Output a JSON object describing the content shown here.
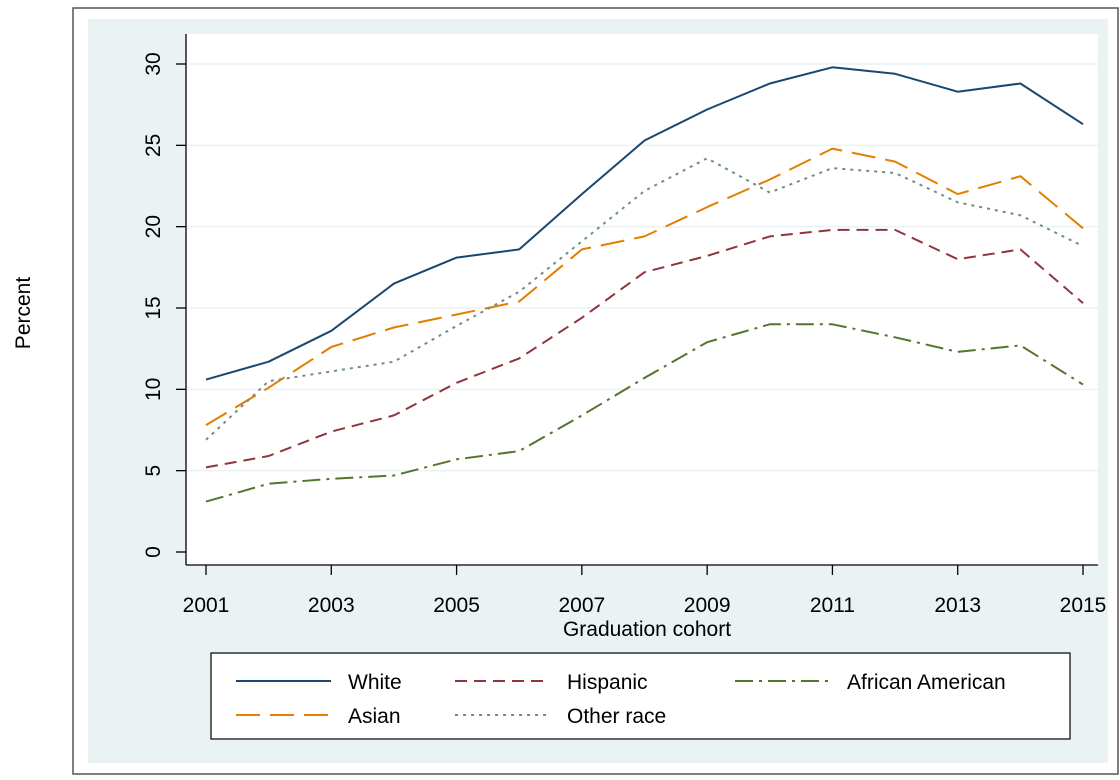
{
  "chart_data": {
    "type": "line",
    "xlabel": "Graduation cohort",
    "ylabel": "Percent",
    "x": [
      2001,
      2002,
      2003,
      2004,
      2005,
      2006,
      2007,
      2008,
      2009,
      2010,
      2011,
      2012,
      2013,
      2014,
      2015
    ],
    "xlim": [
      2001,
      2015
    ],
    "ylim": [
      0,
      30
    ],
    "xticks": [
      2001,
      2003,
      2005,
      2007,
      2009,
      2011,
      2013,
      2015
    ],
    "yticks": [
      0,
      5,
      10,
      15,
      20,
      25,
      30
    ],
    "grid": true,
    "legend_position": "bottom",
    "series": [
      {
        "name": "White",
        "color": "#1a476f",
        "dash": "solid",
        "values": [
          10.6,
          11.7,
          13.6,
          16.5,
          18.1,
          18.6,
          22.0,
          25.3,
          27.2,
          28.8,
          29.8,
          29.4,
          28.3,
          28.8,
          26.3
        ]
      },
      {
        "name": "Hispanic",
        "color": "#90353b",
        "dash": "dash",
        "values": [
          5.2,
          5.9,
          7.4,
          8.4,
          10.4,
          11.9,
          14.4,
          17.2,
          18.2,
          19.4,
          19.8,
          19.8,
          18.0,
          18.6,
          15.3
        ]
      },
      {
        "name": "African American",
        "color": "#55752f",
        "dash": "dashdot",
        "values": [
          3.1,
          4.2,
          4.5,
          4.7,
          5.7,
          6.2,
          8.4,
          10.7,
          12.9,
          14.0,
          14.0,
          13.2,
          12.3,
          12.7,
          10.3
        ]
      },
      {
        "name": "Asian",
        "color": "#e37e00",
        "dash": "longdash",
        "values": [
          7.8,
          10.1,
          12.6,
          13.8,
          14.6,
          15.4,
          18.6,
          19.4,
          21.2,
          22.9,
          24.8,
          24.0,
          22.0,
          23.1,
          19.9
        ]
      },
      {
        "name": "Other race",
        "color": "#6e8e84",
        "dash": "dot",
        "values": [
          6.9,
          10.5,
          11.1,
          11.7,
          13.9,
          16.0,
          19.1,
          22.2,
          24.2,
          22.1,
          23.6,
          23.3,
          21.5,
          20.7,
          18.8
        ]
      }
    ],
    "legend_layout": [
      [
        "White",
        "Hispanic",
        "African American"
      ],
      [
        "Asian",
        "Other race"
      ]
    ]
  }
}
